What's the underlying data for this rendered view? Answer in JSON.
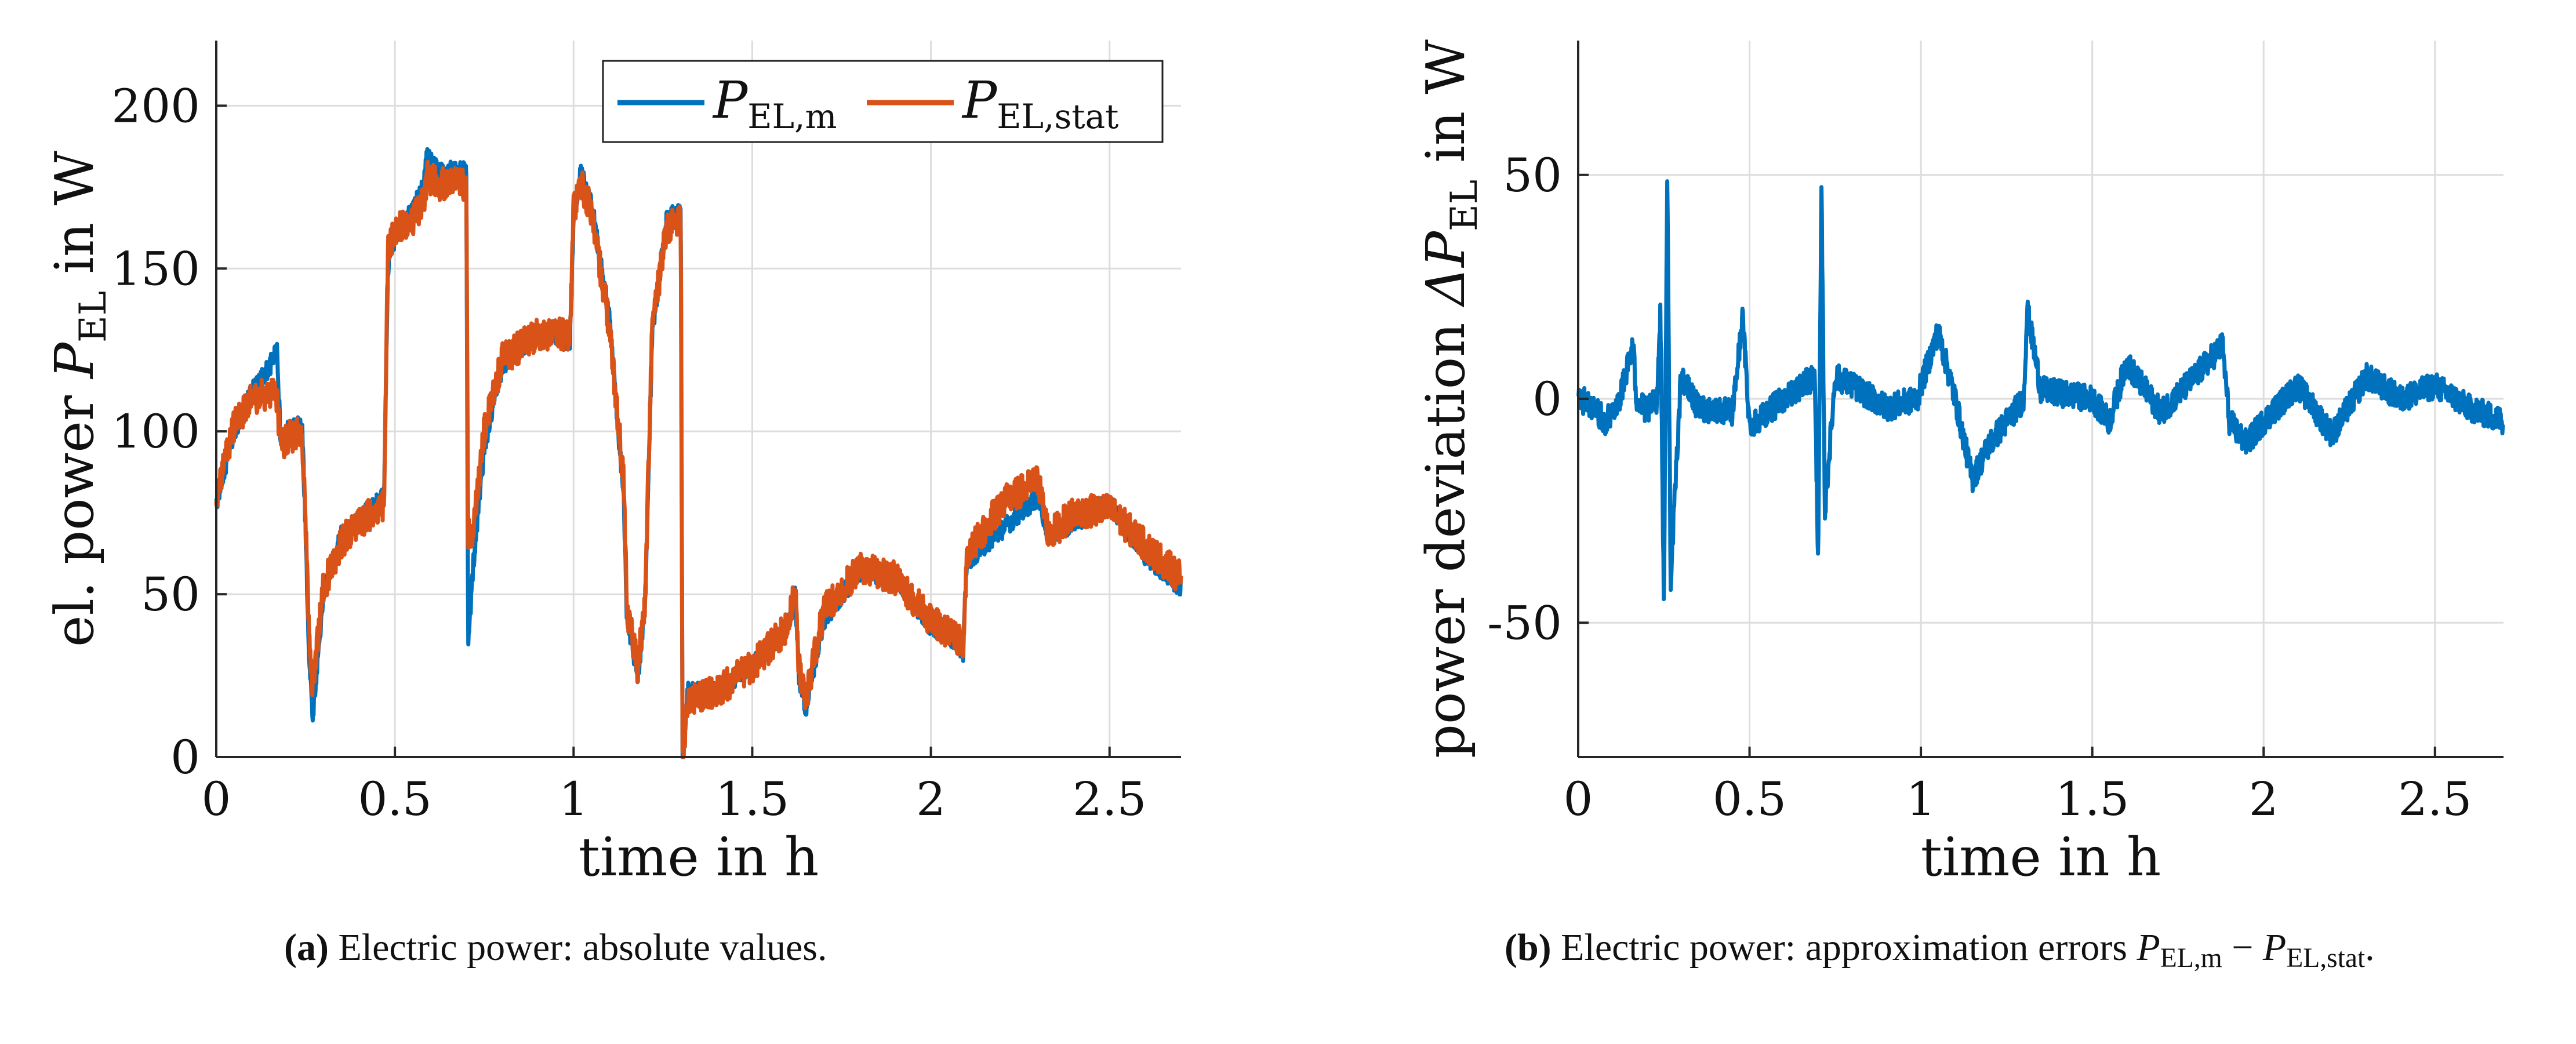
{
  "colors": {
    "measured": "#0072BD",
    "stationary": "#D95319",
    "grid": "#dddddd",
    "axis": "#262626"
  },
  "chart_data": [
    {
      "type": "line",
      "title": "",
      "xlabel": "time in h",
      "ylabel_prefix": "el. power ",
      "ylabel_var": "P",
      "ylabel_sub": "EL",
      "ylabel_suffix": " in W",
      "xlim": [
        0,
        2.7
      ],
      "ylim": [
        0,
        220
      ],
      "xticks": [
        0,
        0.5,
        1,
        1.5,
        2,
        2.5
      ],
      "xtick_labels": [
        "0",
        "0.5",
        "1",
        "1.5",
        "2",
        "2.5"
      ],
      "yticks": [
        0,
        50,
        100,
        150,
        200
      ],
      "ytick_labels": [
        "0",
        "50",
        "100",
        "150",
        "200"
      ],
      "grid": true,
      "legend_position": "top-right",
      "series": [
        {
          "name": "P_EL,m",
          "legend_var": "P",
          "legend_sub": "EL,m",
          "color_key": "measured",
          "noise": 3,
          "x": [
            0,
            0.05,
            0.1,
            0.15,
            0.17,
            0.18,
            0.2,
            0.24,
            0.25,
            0.26,
            0.27,
            0.3,
            0.35,
            0.4,
            0.47,
            0.48,
            0.5,
            0.55,
            0.58,
            0.59,
            0.62,
            0.7,
            0.705,
            0.72,
            0.75,
            0.8,
            0.9,
            0.99,
            1.0,
            1.02,
            1.05,
            1.1,
            1.14,
            1.15,
            1.18,
            1.2,
            1.22,
            1.26,
            1.3,
            1.305,
            1.32,
            1.4,
            1.5,
            1.6,
            1.62,
            1.63,
            1.65,
            1.7,
            1.8,
            1.9,
            2.0,
            2.08,
            2.09,
            2.1,
            2.2,
            2.3,
            2.33,
            2.4,
            2.5,
            2.6,
            2.7
          ],
          "y": [
            78,
            100,
            112,
            120,
            126,
            97,
            100,
            102,
            70,
            30,
            13,
            50,
            68,
            73,
            80,
            150,
            160,
            168,
            175,
            185,
            180,
            180,
            35,
            60,
            95,
            120,
            130,
            128,
            165,
            180,
            170,
            135,
            80,
            40,
            25,
            45,
            130,
            165,
            168,
            0,
            20,
            20,
            28,
            40,
            50,
            25,
            15,
            42,
            57,
            55,
            40,
            35,
            30,
            60,
            70,
            80,
            68,
            72,
            78,
            62,
            52
          ]
        },
        {
          "name": "P_EL,stat",
          "legend_var": "P",
          "legend_sub": "EL,stat",
          "color_key": "stationary",
          "noise": 5,
          "x": [
            0,
            0.05,
            0.1,
            0.15,
            0.17,
            0.18,
            0.2,
            0.24,
            0.25,
            0.26,
            0.27,
            0.3,
            0.35,
            0.4,
            0.47,
            0.48,
            0.5,
            0.55,
            0.58,
            0.59,
            0.62,
            0.7,
            0.705,
            0.72,
            0.75,
            0.8,
            0.9,
            0.99,
            1.0,
            1.02,
            1.05,
            1.1,
            1.14,
            1.15,
            1.18,
            1.2,
            1.22,
            1.26,
            1.3,
            1.305,
            1.32,
            1.4,
            1.5,
            1.6,
            1.62,
            1.63,
            1.65,
            1.7,
            1.8,
            1.9,
            2.0,
            2.08,
            2.09,
            2.1,
            2.2,
            2.3,
            2.33,
            2.4,
            2.5,
            2.6,
            2.7
          ],
          "y": [
            80,
            102,
            110,
            112,
            110,
            96,
            98,
            100,
            72,
            35,
            22,
            52,
            66,
            72,
            78,
            155,
            162,
            165,
            170,
            178,
            176,
            176,
            68,
            70,
            100,
            122,
            130,
            130,
            168,
            176,
            168,
            132,
            85,
            45,
            28,
            48,
            132,
            162,
            166,
            0,
            18,
            20,
            28,
            40,
            52,
            28,
            18,
            45,
            58,
            55,
            42,
            36,
            32,
            62,
            78,
            85,
            68,
            75,
            76,
            65,
            55
          ]
        }
      ]
    },
    {
      "type": "line",
      "title": "",
      "xlabel": "time in h",
      "ylabel_prefix": "power deviation ",
      "ylabel_var": "ΔP",
      "ylabel_sub": "EL",
      "ylabel_suffix": " in W",
      "xlim": [
        0,
        2.7
      ],
      "ylim": [
        -80,
        80
      ],
      "xticks": [
        0,
        0.5,
        1,
        1.5,
        2,
        2.5
      ],
      "xtick_labels": [
        "0",
        "0.5",
        "1",
        "1.5",
        "2",
        "2.5"
      ],
      "yticks": [
        -50,
        0,
        50
      ],
      "ytick_labels": [
        "-50",
        "0",
        "50"
      ],
      "grid": true,
      "series": [
        {
          "name": "ΔP_EL",
          "color_key": "measured",
          "noise": 3,
          "x": [
            0,
            0.03,
            0.08,
            0.12,
            0.16,
            0.17,
            0.2,
            0.23,
            0.24,
            0.25,
            0.26,
            0.27,
            0.3,
            0.35,
            0.45,
            0.48,
            0.5,
            0.6,
            0.69,
            0.7,
            0.71,
            0.72,
            0.75,
            0.8,
            0.9,
            0.99,
            1.0,
            1.05,
            1.1,
            1.15,
            1.2,
            1.25,
            1.3,
            1.31,
            1.35,
            1.5,
            1.55,
            1.6,
            1.7,
            1.8,
            1.88,
            1.9,
            1.95,
            2.0,
            2.1,
            2.2,
            2.3,
            2.4,
            2.5,
            2.6,
            2.7
          ],
          "y": [
            0,
            -1,
            -5,
            0,
            12,
            0,
            -3,
            0,
            20,
            -45,
            50,
            -40,
            5,
            -2,
            -3,
            18,
            -6,
            0,
            5,
            -35,
            46,
            -25,
            5,
            3,
            -2,
            0,
            3,
            15,
            0,
            -18,
            -10,
            -5,
            0,
            20,
            2,
            0,
            -5,
            8,
            -3,
            5,
            12,
            -5,
            -10,
            -5,
            3,
            -8,
            5,
            0,
            3,
            -2,
            -5
          ]
        }
      ]
    }
  ],
  "captions": {
    "a": {
      "label": "(a)",
      "text": " Electric power: absolute values."
    },
    "b": {
      "label": "(b)",
      "line1_pre": " Electric power: approximation errors ",
      "v1": "P",
      "s1": "EL,m",
      "minus": " −",
      "v2": "P",
      "s2": "EL,stat",
      "end": "."
    }
  }
}
